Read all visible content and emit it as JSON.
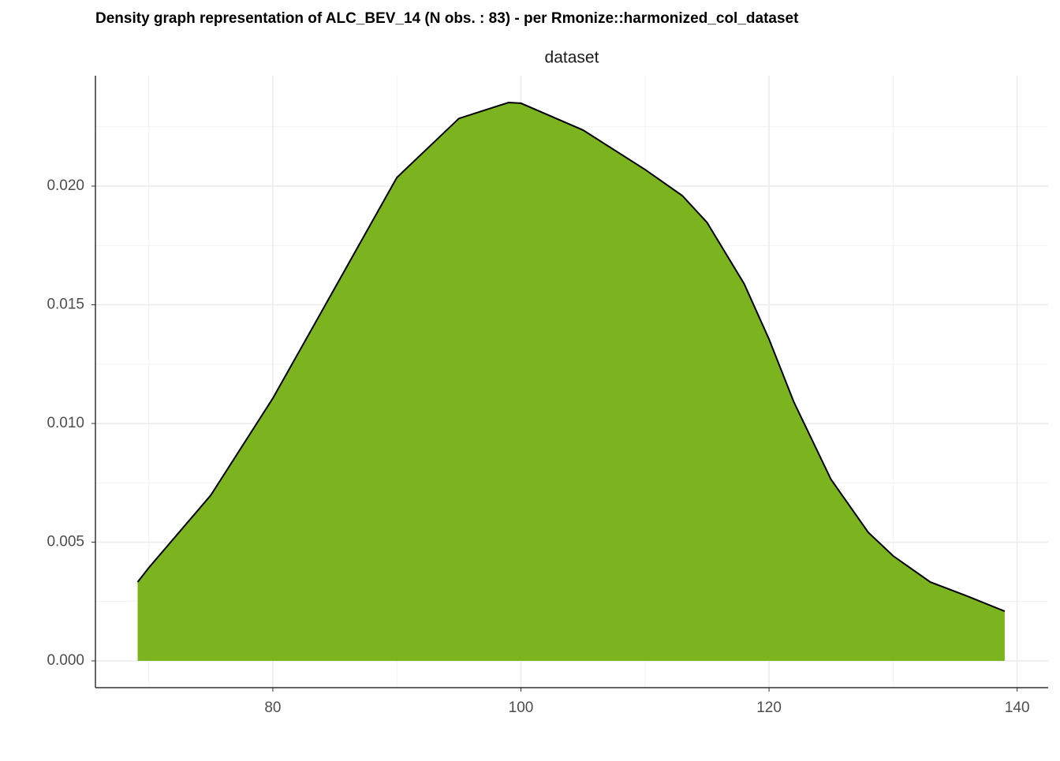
{
  "chart_data": {
    "type": "density",
    "title": "Density graph representation of ALC_BEV_14 (N obs. : 83) - per Rmonize::harmonized_col_dataset",
    "facet_label": "dataset",
    "x": [
      69.1,
      70,
      75,
      80,
      85,
      90,
      95,
      99,
      100,
      105,
      110,
      113,
      115,
      118,
      120,
      122,
      125,
      128,
      130,
      133,
      136,
      139
    ],
    "values": [
      0.00332,
      0.00392,
      0.00698,
      0.01106,
      0.01571,
      0.02036,
      0.02285,
      0.02352,
      0.02349,
      0.02236,
      0.0207,
      0.0196,
      0.01847,
      0.01588,
      0.01355,
      0.0109,
      0.00764,
      0.00541,
      0.00442,
      0.00332,
      0.00272,
      0.00209
    ],
    "color": "#7cb41f",
    "xlim": [
      65.7,
      142.5
    ],
    "ylim": [
      -0.00113,
      0.02465
    ],
    "xticks": [
      80,
      100,
      120,
      140
    ],
    "yticks": [
      {
        "value": 0,
        "label": "0.000"
      },
      {
        "value": 0.005,
        "label": "0.005"
      },
      {
        "value": 0.01,
        "label": "0.010"
      },
      {
        "value": 0.015,
        "label": "0.015"
      },
      {
        "value": 0.02,
        "label": "0.020"
      }
    ],
    "grid": true
  }
}
